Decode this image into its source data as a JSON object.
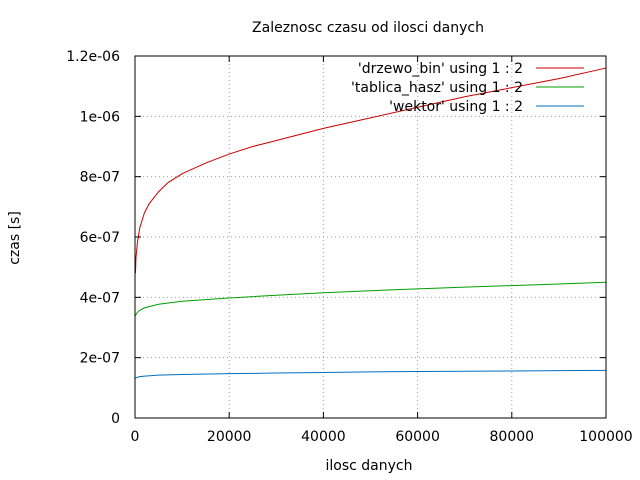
{
  "chart_data": {
    "type": "line",
    "title": "Zaleznosc czasu od ilosci danych",
    "xlabel": "ilosc danych",
    "ylabel": "czas [s]",
    "xlim": [
      0,
      100000
    ],
    "ylim": [
      0,
      1.2e-06
    ],
    "x_ticks": [
      0,
      20000,
      40000,
      60000,
      80000,
      100000
    ],
    "x_tick_labels": [
      "0",
      "20000",
      "40000",
      "60000",
      "80000",
      "100000"
    ],
    "y_ticks": [
      0,
      2e-07,
      4e-07,
      6e-07,
      8e-07,
      1e-06,
      1.2e-06
    ],
    "y_tick_labels": [
      "0",
      "2e-07",
      "4e-07",
      "6e-07",
      "8e-07",
      "1e-06",
      "1.2e-06"
    ],
    "grid": true,
    "legend_position": "top-right",
    "series": [
      {
        "name": "'drzewo_bin' using 1 : 2",
        "color": "#cc0000",
        "x": [
          100,
          200,
          500,
          1000,
          2000,
          3000,
          5000,
          7000,
          10000,
          15000,
          20000,
          25000,
          30000,
          40000,
          50000,
          60000,
          70000,
          80000,
          90000,
          100000
        ],
        "y": [
          4.8e-07,
          5.3e-07,
          5.8e-07,
          6.3e-07,
          6.8e-07,
          7.1e-07,
          7.5e-07,
          7.8e-07,
          8.1e-07,
          8.45e-07,
          8.75e-07,
          9e-07,
          9.2e-07,
          9.6e-07,
          9.95e-07,
          1.03e-06,
          1.065e-06,
          1.095e-06,
          1.125e-06,
          1.16e-06
        ]
      },
      {
        "name": "'tablica_hasz' using 1 : 2",
        "color": "#00a000",
        "x": [
          100,
          500,
          1000,
          2000,
          5000,
          10000,
          20000,
          30000,
          40000,
          50000,
          60000,
          70000,
          80000,
          90000,
          100000
        ],
        "y": [
          3.4e-07,
          3.5e-07,
          3.57e-07,
          3.65e-07,
          3.77e-07,
          3.87e-07,
          3.98e-07,
          4.07e-07,
          4.15e-07,
          4.22e-07,
          4.28e-07,
          4.34e-07,
          4.39e-07,
          4.44e-07,
          4.5e-07
        ]
      },
      {
        "name": "'wektor' using 1 : 2",
        "color": "#0070c0",
        "x": [
          100,
          500,
          1000,
          2000,
          5000,
          10000,
          20000,
          30000,
          40000,
          50000,
          60000,
          70000,
          80000,
          90000,
          100000
        ],
        "y": [
          1.32e-07,
          1.35e-07,
          1.37e-07,
          1.39e-07,
          1.42e-07,
          1.44e-07,
          1.47e-07,
          1.49e-07,
          1.51e-07,
          1.53e-07,
          1.54e-07,
          1.55e-07,
          1.56e-07,
          1.57e-07,
          1.58e-07
        ]
      }
    ]
  }
}
